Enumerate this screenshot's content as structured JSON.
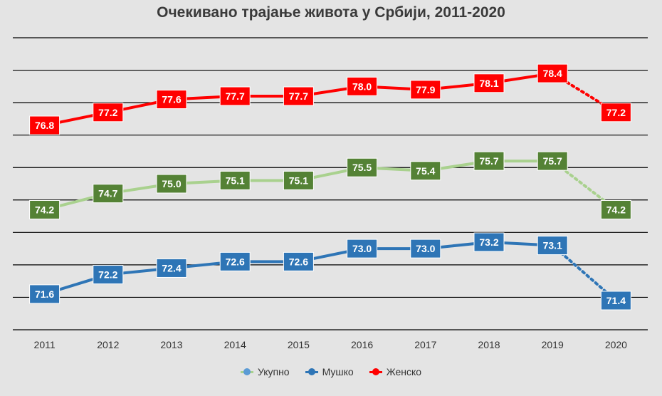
{
  "chart_data": {
    "type": "line",
    "title": "Очекивано трајање живота у Србији, 2011-2020",
    "categories": [
      "2011",
      "2012",
      "2013",
      "2014",
      "2015",
      "2016",
      "2017",
      "2018",
      "2019",
      "2020"
    ],
    "series": [
      {
        "name": "Укупно",
        "values": [
          74.2,
          74.7,
          75.0,
          75.1,
          75.1,
          75.5,
          75.4,
          75.7,
          75.7,
          74.2
        ],
        "line_color": "#a9d18e",
        "label_bg": "#548235",
        "label_color": "#ffffff"
      },
      {
        "name": "Мушко",
        "values": [
          71.6,
          72.2,
          72.4,
          72.6,
          72.6,
          73.0,
          73.0,
          73.2,
          73.1,
          71.4
        ],
        "line_color": "#2e75b6",
        "label_bg": "#2e75b6",
        "label_color": "#ffffff"
      },
      {
        "name": "Женско",
        "values": [
          76.8,
          77.2,
          77.6,
          77.7,
          77.7,
          78.0,
          77.9,
          78.1,
          78.4,
          77.2
        ],
        "line_color": "#ff0000",
        "label_bg": "#ff0000",
        "label_color": "#ffffff"
      }
    ],
    "dotted_last_segment": true,
    "grid": true,
    "ylim": [
      70.5,
      79.5
    ],
    "legend_position": "bottom"
  },
  "colors": {
    "background": "#e4e4e4",
    "gridline": "#000000",
    "tick_text": "#333333",
    "legend_ukupno_marker": "#5b9bd5"
  }
}
